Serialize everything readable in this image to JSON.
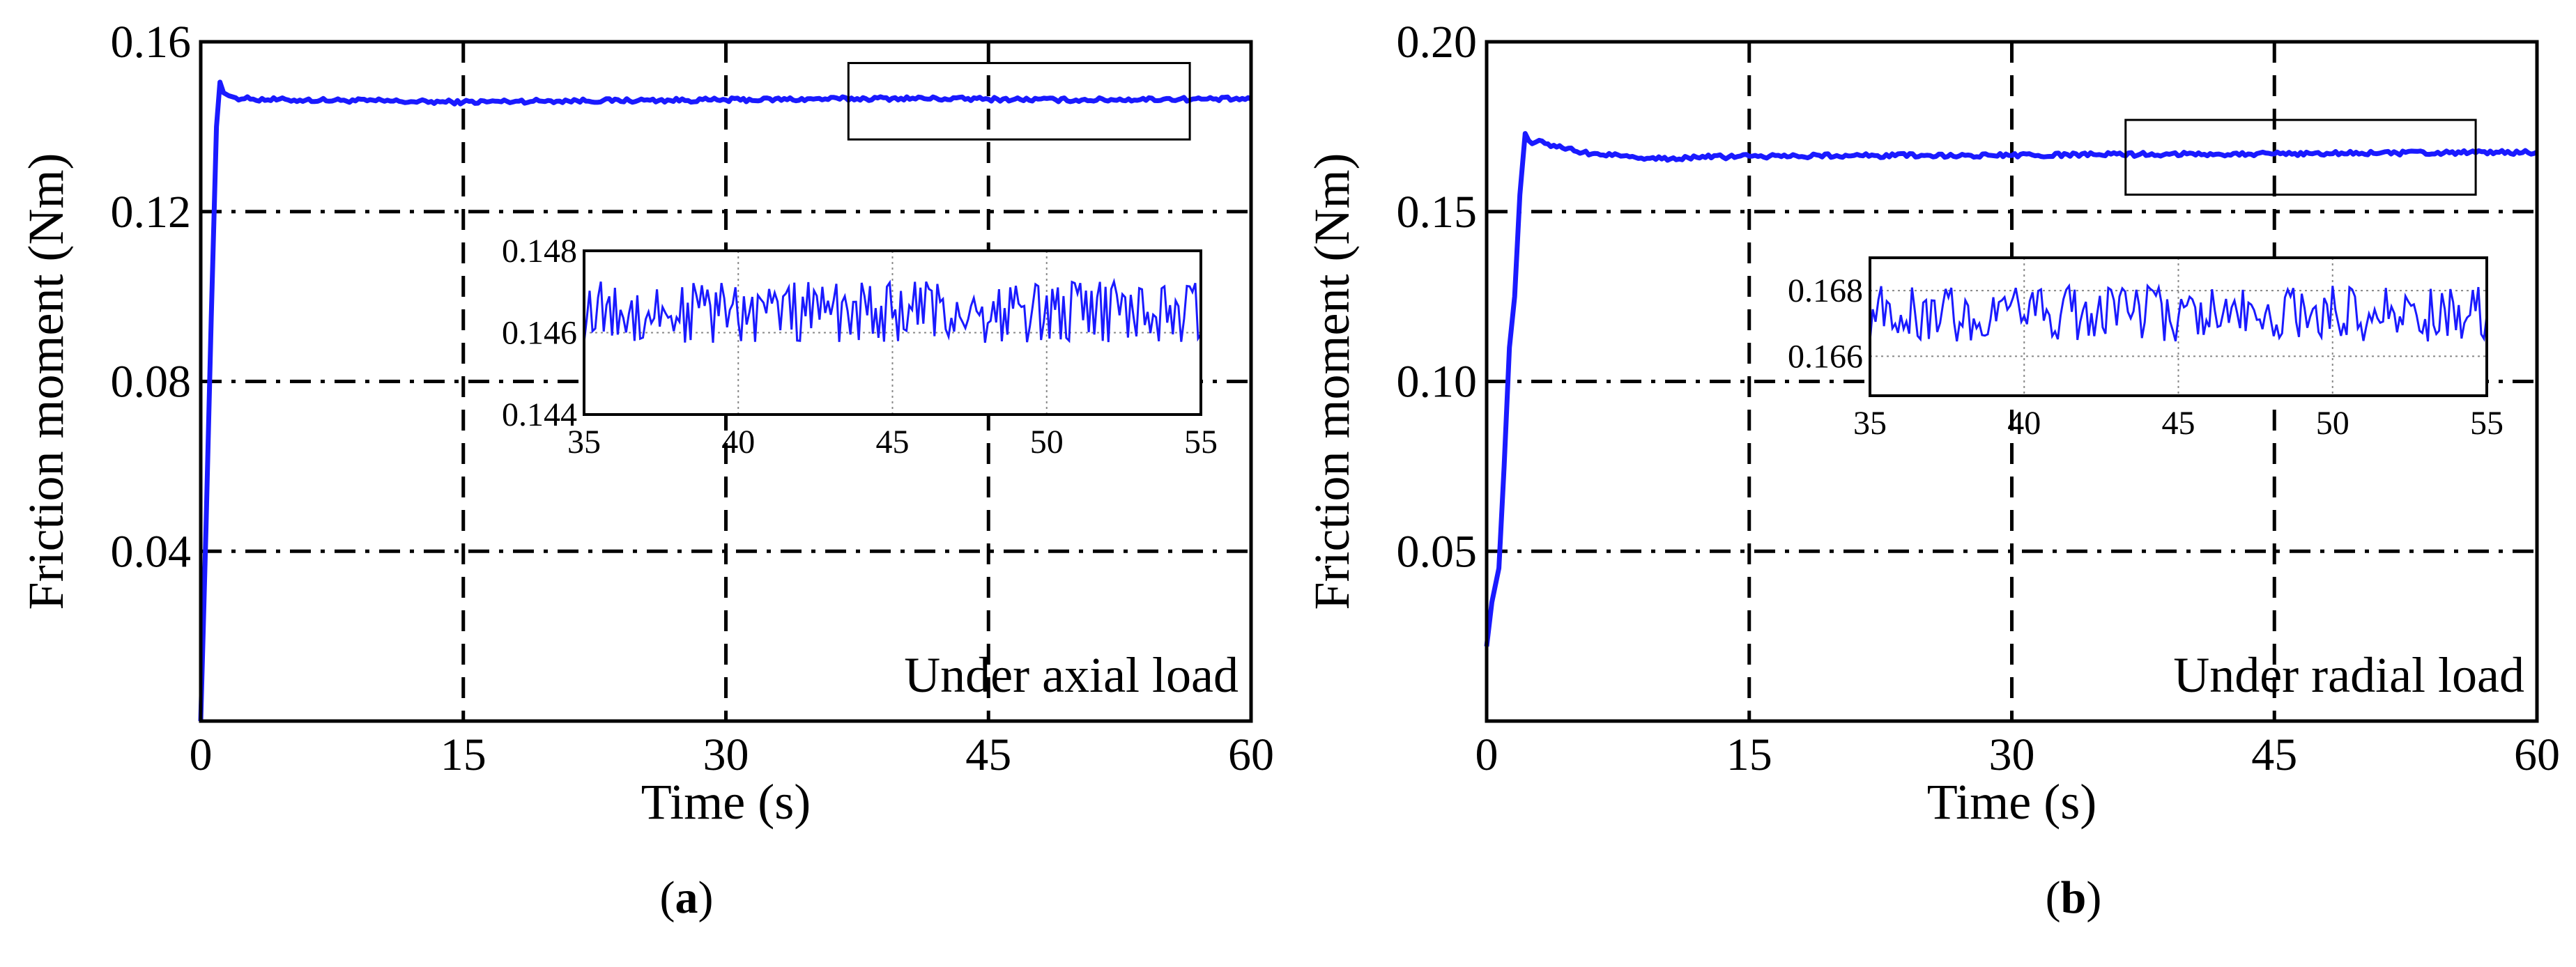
{
  "chart_data": [
    {
      "type": "line",
      "panel_label": "a",
      "xlabel": "Time (s)",
      "ylabel": "Friction moment (Nm)",
      "annotation": "Under axial load",
      "color": "#1a1aff",
      "xlim": [
        0,
        60
      ],
      "ylim": [
        0.0,
        0.16
      ],
      "xticks": [
        "0",
        "15",
        "30",
        "45",
        "60"
      ],
      "yticks": [
        "0.04",
        "0.08",
        "0.12",
        "0.16"
      ],
      "grid": true,
      "series": [
        {
          "name": "Friction moment",
          "x": [
            0,
            0.3,
            0.6,
            0.9,
            1.1,
            1.3,
            1.6,
            2,
            3,
            5,
            8,
            10,
            12,
            15,
            18,
            20,
            25,
            30,
            35,
            40,
            45,
            50,
            55,
            60
          ],
          "y": [
            0.0,
            0.045,
            0.095,
            0.14,
            0.1505,
            0.148,
            0.1473,
            0.1468,
            0.1465,
            0.1463,
            0.1462,
            0.1461,
            0.1459,
            0.1458,
            0.146,
            0.1461,
            0.1462,
            0.1463,
            0.1465,
            0.1467,
            0.1465,
            0.1463,
            0.1465,
            0.1465
          ]
        }
      ],
      "highlight_box": {
        "x": [
          37,
          56.5
        ],
        "y": [
          0.137,
          0.155
        ]
      },
      "inset": {
        "xlim": [
          35,
          55
        ],
        "ylim": [
          0.144,
          0.148
        ],
        "xticks": [
          "35",
          "40",
          "45",
          "50",
          "55"
        ],
        "yticks": [
          "0.144",
          "0.146",
          "0.148"
        ],
        "mean": 0.1465,
        "noise_amplitude": 0.00075
      }
    },
    {
      "type": "line",
      "panel_label": "b",
      "xlabel": "Time (s)",
      "ylabel": "Friction moment (Nm)",
      "annotation": "Under radial load",
      "color": "#1a1aff",
      "xlim": [
        0,
        60
      ],
      "ylim": [
        0.0,
        0.2
      ],
      "xticks": [
        "0",
        "15",
        "30",
        "45",
        "60"
      ],
      "yticks": [
        "0.05",
        "0.10",
        "0.15",
        "0.20"
      ],
      "grid": true,
      "series": [
        {
          "name": "Friction moment",
          "x": [
            0,
            0.3,
            0.7,
            1.0,
            1.3,
            1.6,
            1.9,
            2.2,
            2.6,
            3,
            4,
            6,
            8,
            10,
            12,
            15,
            20,
            25,
            30,
            35,
            40,
            45,
            50,
            55,
            60
          ],
          "y": [
            0.022,
            0.035,
            0.045,
            0.075,
            0.11,
            0.125,
            0.155,
            0.173,
            0.17,
            0.171,
            0.169,
            0.167,
            0.1665,
            0.1655,
            0.166,
            0.1663,
            0.1665,
            0.1665,
            0.1665,
            0.1668,
            0.167,
            0.167,
            0.1672,
            0.1673,
            0.1675
          ]
        }
      ],
      "highlight_box": {
        "x": [
          36.5,
          56.5
        ],
        "y": [
          0.155,
          0.177
        ]
      },
      "inset": {
        "xlim": [
          35,
          55
        ],
        "ylim": [
          0.1648,
          0.169
        ],
        "xticks": [
          "35",
          "40",
          "45",
          "50",
          "55"
        ],
        "yticks": [
          "0.166",
          "0.168"
        ],
        "mean": 0.1673,
        "noise_amplitude": 0.00085
      }
    }
  ]
}
